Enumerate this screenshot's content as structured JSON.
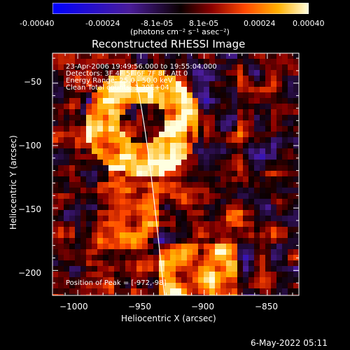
{
  "colorbar": {
    "tick_labels": [
      "-0.00040",
      "-0.00024",
      "-8.1e-05",
      "8.1e-05",
      "0.00024",
      "0.00040"
    ],
    "unit": "(photons cm⁻² s⁻¹ asec⁻²)",
    "range": [
      -0.0004,
      0.0004
    ]
  },
  "image": {
    "title": "Reconstructed RHESSI Image",
    "annotations": [
      "23-Apr-2006 19:49:56.000 to 19:55:04.000",
      "Detectors: 3F 4F 5F 6F 7F 8F, Att 0",
      "Energy Range: 25.0 - 50.0 keV",
      "Clean     Total counts: 1.39E+04"
    ],
    "peak_label": "Position of Peak = [-972,-98]"
  },
  "x_axis": {
    "label": "Heliocentric X (arcsec)",
    "range": [
      -1020,
      -825
    ],
    "ticks": [
      -1000,
      -950,
      -900,
      -850
    ],
    "tick_labels": [
      "−1000",
      "−950",
      "−900",
      "−850"
    ]
  },
  "y_axis": {
    "label": "Heliocentric Y (arcsec)",
    "range": [
      -220,
      -26
    ],
    "ticks": [
      -50,
      -100,
      -150,
      -200
    ],
    "tick_labels": [
      "−50",
      "−100",
      "−150",
      "−200"
    ]
  },
  "timestamp": "6-May-2022 05:11",
  "colors": {
    "background": "#000000",
    "axis": "#ffffff"
  }
}
